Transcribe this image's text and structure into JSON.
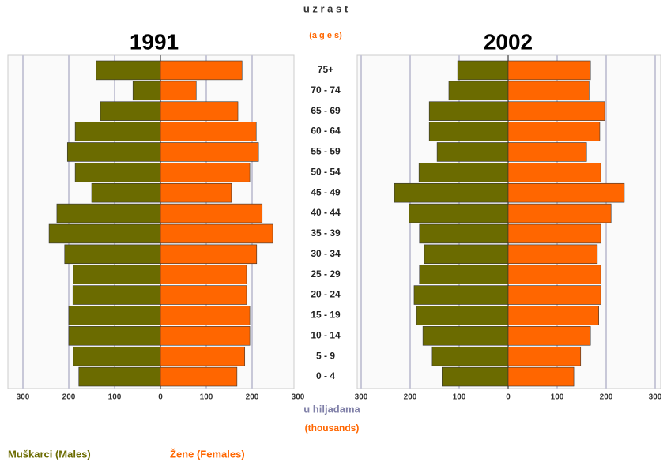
{
  "age_title": "u z r a s t",
  "age_title_en": "(a g e s)",
  "value_title": "u hiljadama",
  "value_title_en": "(thousands)",
  "chart_data": [
    {
      "type": "pyramid",
      "title": "1991",
      "categories": [
        "75+",
        "70 - 74",
        "65 - 69",
        "60 - 64",
        "55 - 59",
        "50 - 54",
        "45 - 49",
        "40 - 44",
        "35 - 39",
        "30 - 34",
        "25 - 29",
        "20 - 24",
        "15 - 19",
        "10 - 14",
        "5 - 9",
        "0 - 4"
      ],
      "series": [
        {
          "name": "Muškarci (Males)",
          "color": "#6b6b00",
          "side": "left",
          "values": [
            140,
            60,
            131,
            186,
            203,
            186,
            150,
            226,
            243,
            209,
            190,
            191,
            200,
            200,
            190,
            178
          ]
        },
        {
          "name": "Žene (Females)",
          "color": "#ff6600",
          "side": "right",
          "values": [
            178,
            78,
            169,
            209,
            214,
            195,
            155,
            222,
            245,
            210,
            188,
            188,
            195,
            195,
            184,
            167
          ]
        }
      ],
      "xlim": [
        0,
        300
      ],
      "xticks": [
        0,
        100,
        200,
        300
      ],
      "grid": true
    },
    {
      "type": "pyramid",
      "title": "2002",
      "categories": [
        "75+",
        "70 - 74",
        "65 - 69",
        "60 - 64",
        "55 - 59",
        "50 - 54",
        "45 - 49",
        "40 - 44",
        "35 - 39",
        "30 - 34",
        "25 - 29",
        "20 - 24",
        "15 - 19",
        "10 - 14",
        "5 - 9",
        "0 - 4"
      ],
      "series": [
        {
          "name": "Muškarci (Males)",
          "color": "#6b6b00",
          "side": "left",
          "values": [
            103,
            121,
            161,
            161,
            145,
            182,
            232,
            202,
            181,
            171,
            181,
            192,
            187,
            174,
            155,
            135
          ]
        },
        {
          "name": "Žene (Females)",
          "color": "#ff6600",
          "side": "right",
          "values": [
            168,
            165,
            197,
            187,
            160,
            189,
            237,
            210,
            189,
            182,
            189,
            189,
            185,
            168,
            148,
            134
          ]
        }
      ],
      "xlim": [
        0,
        300
      ],
      "xticks": [
        0,
        100,
        200,
        300
      ],
      "grid": true
    }
  ]
}
